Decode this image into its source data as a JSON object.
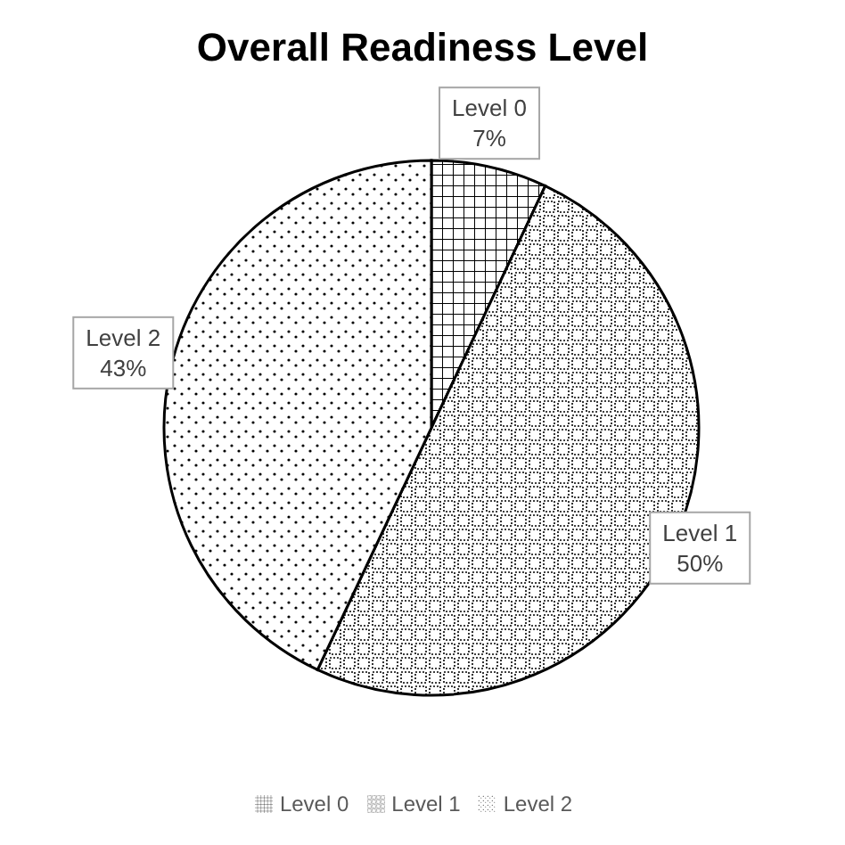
{
  "chart_data": {
    "type": "pie",
    "title": "Overall Readiness Level",
    "categories": [
      "Level 0",
      "Level 1",
      "Level 2"
    ],
    "values": [
      7,
      50,
      43
    ],
    "value_labels": [
      "7%",
      "50%",
      "43%"
    ],
    "colors": [
      "#000000",
      "#000000",
      "#000000"
    ],
    "legend": "bottom"
  }
}
